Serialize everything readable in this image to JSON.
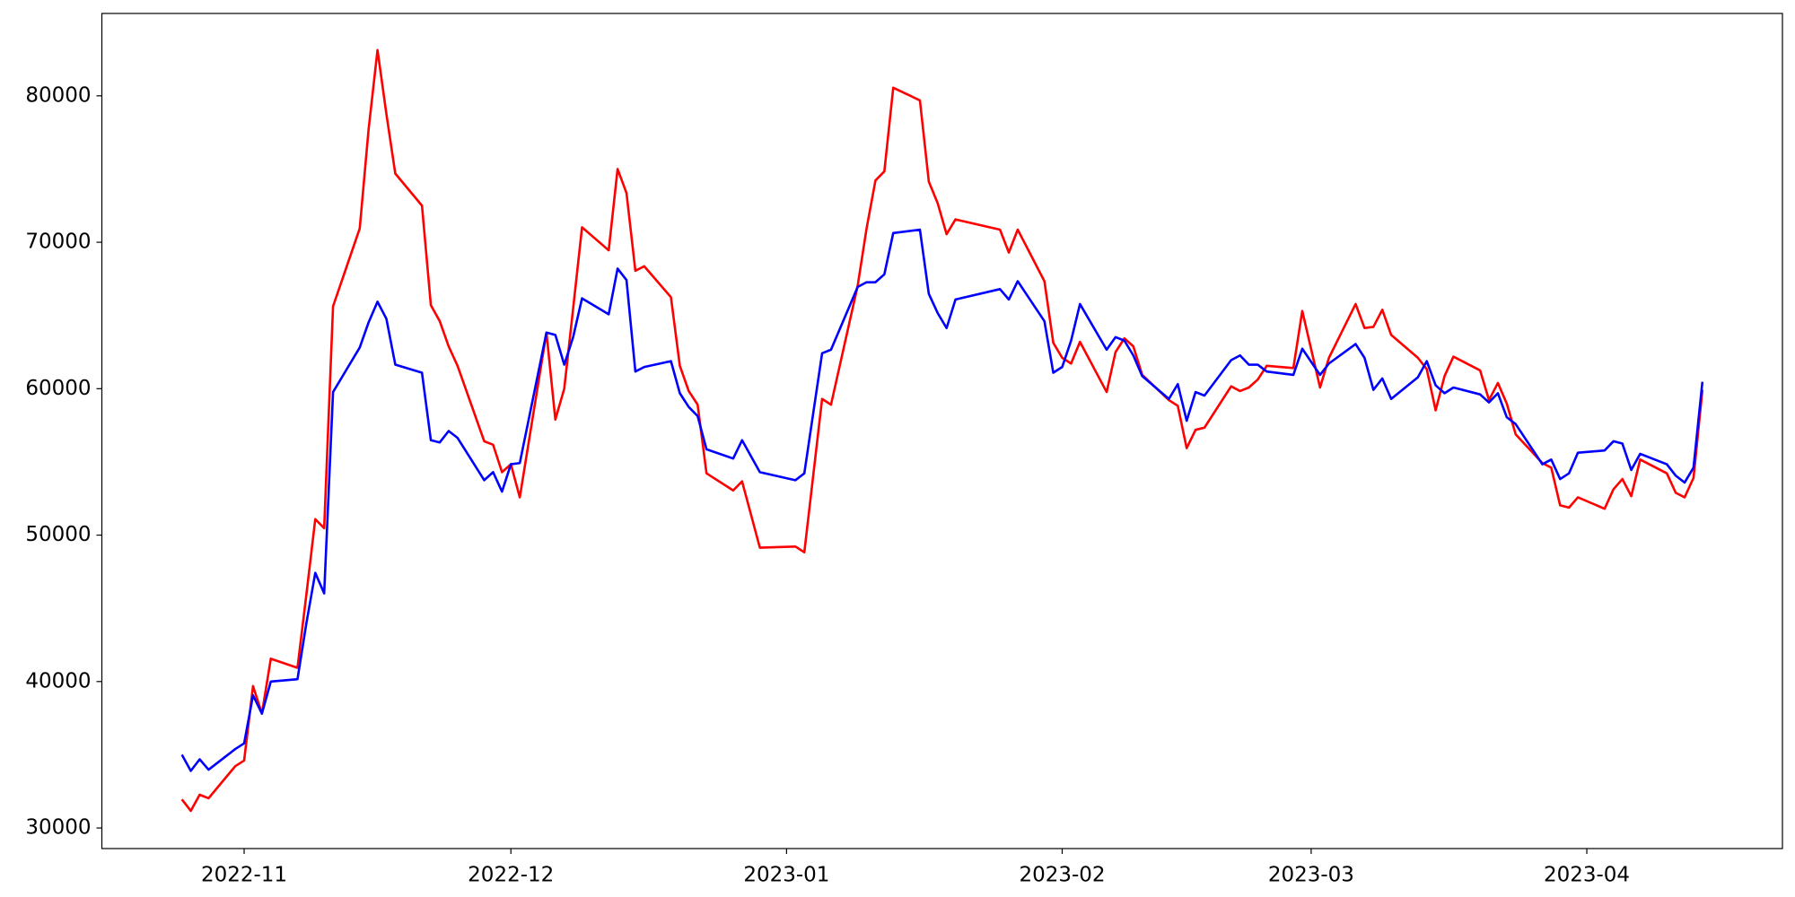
{
  "chart_data": {
    "type": "line",
    "x": [
      "2022-10-25",
      "2022-10-26",
      "2022-10-27",
      "2022-10-28",
      "2022-10-31",
      "2022-11-01",
      "2022-11-02",
      "2022-11-03",
      "2022-11-04",
      "2022-11-07",
      "2022-11-08",
      "2022-11-09",
      "2022-11-10",
      "2022-11-11",
      "2022-11-14",
      "2022-11-15",
      "2022-11-16",
      "2022-11-17",
      "2022-11-18",
      "2022-11-21",
      "2022-11-22",
      "2022-11-23",
      "2022-11-24",
      "2022-11-25",
      "2022-11-28",
      "2022-11-29",
      "2022-11-30",
      "2022-12-01",
      "2022-12-02",
      "2022-12-05",
      "2022-12-06",
      "2022-12-07",
      "2022-12-08",
      "2022-12-09",
      "2022-12-12",
      "2022-12-13",
      "2022-12-14",
      "2022-12-15",
      "2022-12-16",
      "2022-12-19",
      "2022-12-20",
      "2022-12-21",
      "2022-12-22",
      "2022-12-23",
      "2022-12-26",
      "2022-12-27",
      "2022-12-29",
      "2023-01-02",
      "2023-01-03",
      "2023-01-05",
      "2023-01-06",
      "2023-01-09",
      "2023-01-10",
      "2023-01-11",
      "2023-01-12",
      "2023-01-13",
      "2023-01-16",
      "2023-01-17",
      "2023-01-18",
      "2023-01-19",
      "2023-01-20",
      "2023-01-25",
      "2023-01-26",
      "2023-01-27",
      "2023-01-30",
      "2023-01-31",
      "2023-02-01",
      "2023-02-02",
      "2023-02-03",
      "2023-02-06",
      "2023-02-07",
      "2023-02-08",
      "2023-02-09",
      "2023-02-10",
      "2023-02-13",
      "2023-02-14",
      "2023-02-15",
      "2023-02-16",
      "2023-02-17",
      "2023-02-20",
      "2023-02-21",
      "2023-02-22",
      "2023-02-23",
      "2023-02-24",
      "2023-02-27",
      "2023-02-28",
      "2023-03-02",
      "2023-03-03",
      "2023-03-06",
      "2023-03-07",
      "2023-03-08",
      "2023-03-09",
      "2023-03-10",
      "2023-03-13",
      "2023-03-14",
      "2023-03-15",
      "2023-03-16",
      "2023-03-17",
      "2023-03-20",
      "2023-03-21",
      "2023-03-22",
      "2023-03-23",
      "2023-03-24",
      "2023-03-27",
      "2023-03-28",
      "2023-03-29",
      "2023-03-30",
      "2023-03-31",
      "2023-04-03",
      "2023-04-04",
      "2023-04-05",
      "2023-04-06",
      "2023-04-07",
      "2023-04-10",
      "2023-04-11",
      "2023-04-12",
      "2023-04-13",
      "2023-04-14"
    ],
    "series": [
      {
        "color": "#ff0000",
        "values": [
          31950,
          31170,
          32270,
          32030,
          34220,
          34610,
          39690,
          37810,
          41560,
          40940,
          45940,
          51090,
          50470,
          65625,
          70940,
          77730,
          83125,
          78750,
          74690,
          72500,
          65700,
          64610,
          62890,
          61560,
          56410,
          56170,
          54300,
          54840,
          52580,
          63830,
          57890,
          60000,
          65470,
          71020,
          69450,
          75000,
          73360,
          68050,
          68360,
          66250,
          61560,
          59840,
          58910,
          54220,
          53050,
          53670,
          49140,
          49220,
          48830,
          59300,
          58910,
          67030,
          70940,
          74220,
          74840,
          80550,
          79690,
          74140,
          72660,
          70550,
          71560,
          70860,
          69300,
          70860,
          67340,
          63130,
          62110,
          61720,
          63200,
          59770,
          62500,
          63440,
          62890,
          60940,
          59220,
          58830,
          55940,
          57190,
          57340,
          60160,
          59840,
          60080,
          60630,
          61560,
          61410,
          65310,
          60080,
          62110,
          65780,
          64140,
          64220,
          65390,
          63670,
          62110,
          61330,
          58520,
          60860,
          62190,
          61250,
          59220,
          60390,
          58980,
          56880,
          54920,
          54610,
          52030,
          51880,
          52580,
          51800,
          53130,
          53830,
          52660,
          55160,
          54220,
          52890,
          52580,
          53910,
          59920
        ]
      },
      {
        "color": "#0000ff",
        "values": [
          35000,
          33900,
          34690,
          33980,
          35390,
          35780,
          39060,
          37810,
          40000,
          40160,
          43980,
          47420,
          46020,
          59770,
          62810,
          64530,
          65940,
          64770,
          61640,
          61090,
          56480,
          56330,
          57110,
          56640,
          53750,
          54300,
          52970,
          54840,
          54920,
          63830,
          63670,
          61640,
          63520,
          66170,
          65080,
          68200,
          67420,
          61170,
          61480,
          61880,
          59690,
          58750,
          58130,
          55860,
          55230,
          56480,
          54300,
          53750,
          54220,
          62420,
          62660,
          66950,
          67270,
          67270,
          67810,
          70630,
          70860,
          66480,
          65160,
          64140,
          66090,
          66800,
          66090,
          67340,
          64610,
          61090,
          61480,
          63280,
          65780,
          62660,
          63520,
          63280,
          62270,
          60860,
          59300,
          60310,
          57810,
          59770,
          59530,
          61950,
          62270,
          61640,
          61640,
          61170,
          60940,
          62730,
          60940,
          61720,
          63050,
          62110,
          59920,
          60700,
          59300,
          60780,
          61880,
          60230,
          59690,
          60080,
          59610,
          59060,
          59690,
          58050,
          57580,
          54840,
          55160,
          53830,
          54220,
          55630,
          55780,
          56410,
          56250,
          54450,
          55550,
          54840,
          54060,
          53590,
          54610,
          60470
        ]
      }
    ],
    "xlim": [
      "2022-10-16",
      "2023-04-23"
    ],
    "xticks": [
      {
        "value": "2022-11-01",
        "label": "2022-11"
      },
      {
        "value": "2022-12-01",
        "label": "2022-12"
      },
      {
        "value": "2023-01-01",
        "label": "2023-01"
      },
      {
        "value": "2023-02-01",
        "label": "2023-02"
      },
      {
        "value": "2023-03-01",
        "label": "2023-03"
      },
      {
        "value": "2023-04-01",
        "label": "2023-04"
      }
    ],
    "ylim": [
      28594,
      85625
    ],
    "yticks": [
      30000,
      40000,
      50000,
      60000,
      70000,
      80000
    ]
  }
}
